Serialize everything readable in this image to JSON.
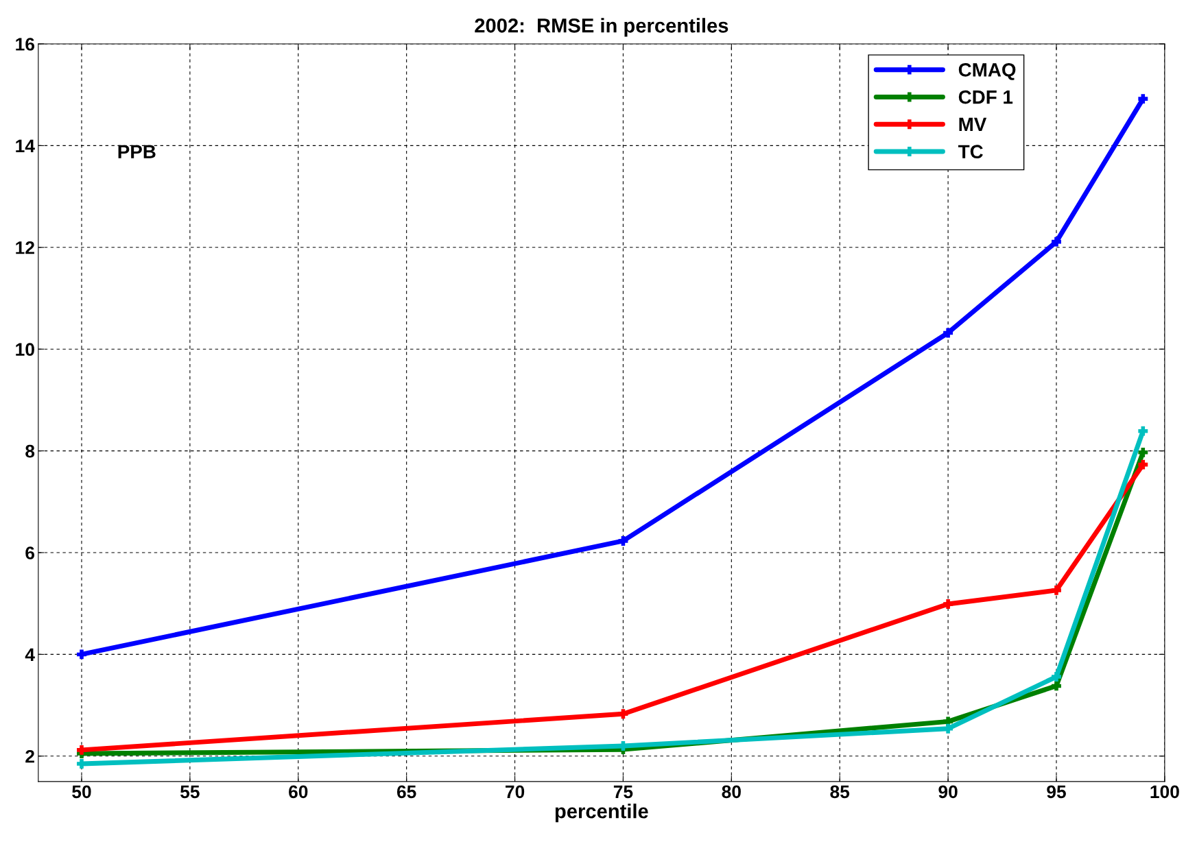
{
  "chart_data": {
    "type": "line",
    "title": "2002:  RMSE in percentiles",
    "xlabel": "percentile",
    "x": [
      50,
      75,
      90,
      95,
      99
    ],
    "series": [
      {
        "name": "CMAQ",
        "color": "#0000ff",
        "values": [
          4.0,
          6.23,
          10.32,
          12.11,
          14.92
        ]
      },
      {
        "name": "CDF 1",
        "color": "#008000",
        "values": [
          2.05,
          2.13,
          2.68,
          3.38,
          7.97
        ]
      },
      {
        "name": "MV",
        "color": "#ff0000",
        "values": [
          2.12,
          2.83,
          4.99,
          5.26,
          7.73
        ]
      },
      {
        "name": "TC",
        "color": "#00bfbf",
        "values": [
          1.85,
          2.2,
          2.54,
          3.56,
          8.39
        ]
      }
    ],
    "annotations": [
      "PPB"
    ],
    "xlim": [
      48,
      100
    ],
    "xticks": [
      50,
      55,
      60,
      65,
      70,
      75,
      80,
      85,
      90,
      95,
      100
    ],
    "ylim": [
      1.5,
      16
    ],
    "yticks": [
      2,
      4,
      6,
      8,
      10,
      12,
      14,
      16
    ],
    "grid": true,
    "legend": "top right",
    "marker": "cross",
    "line_style": "solid"
  }
}
